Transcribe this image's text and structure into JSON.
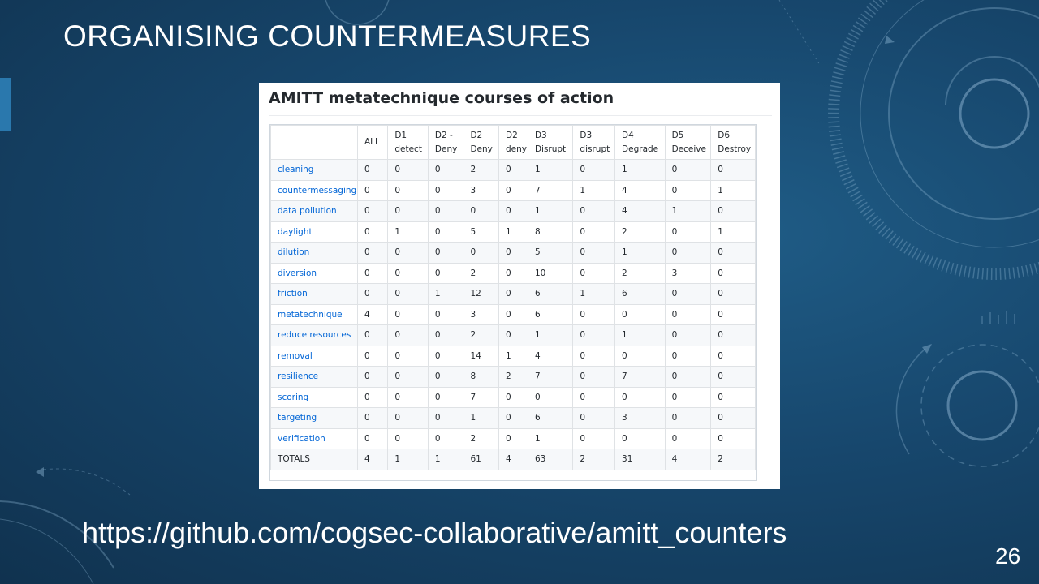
{
  "slide": {
    "title": "ORGANISING COUNTERMEASURES",
    "url": "https://github.com/cogsec-collaborative/amitt_counters",
    "page_number": "26"
  },
  "screenshot": {
    "heading": "AMITT metatechnique courses of action",
    "table": {
      "columns": [
        {
          "line1": "",
          "line2": ""
        },
        {
          "line1": "ALL",
          "line2": ""
        },
        {
          "line1": "D1",
          "line2": "detect"
        },
        {
          "line1": "D2 -",
          "line2": "Deny"
        },
        {
          "line1": "D2",
          "line2": "Deny"
        },
        {
          "line1": "D2",
          "line2": "deny"
        },
        {
          "line1": "D3",
          "line2": "Disrupt"
        },
        {
          "line1": "D3",
          "line2": "disrupt"
        },
        {
          "line1": "D4",
          "line2": "Degrade"
        },
        {
          "line1": "D5",
          "line2": "Deceive"
        },
        {
          "line1": "D6",
          "line2": "Destroy"
        }
      ],
      "rows": [
        {
          "label": "cleaning",
          "values": [
            "0",
            "0",
            "0",
            "2",
            "0",
            "1",
            "0",
            "1",
            "0",
            "0"
          ]
        },
        {
          "label": "countermessaging",
          "values": [
            "0",
            "0",
            "0",
            "3",
            "0",
            "7",
            "1",
            "4",
            "0",
            "1"
          ]
        },
        {
          "label": "data pollution",
          "values": [
            "0",
            "0",
            "0",
            "0",
            "0",
            "1",
            "0",
            "4",
            "1",
            "0"
          ]
        },
        {
          "label": "daylight",
          "values": [
            "0",
            "1",
            "0",
            "5",
            "1",
            "8",
            "0",
            "2",
            "0",
            "1"
          ]
        },
        {
          "label": "dilution",
          "values": [
            "0",
            "0",
            "0",
            "0",
            "0",
            "5",
            "0",
            "1",
            "0",
            "0"
          ]
        },
        {
          "label": "diversion",
          "values": [
            "0",
            "0",
            "0",
            "2",
            "0",
            "10",
            "0",
            "2",
            "3",
            "0"
          ]
        },
        {
          "label": "friction",
          "values": [
            "0",
            "0",
            "1",
            "12",
            "0",
            "6",
            "1",
            "6",
            "0",
            "0"
          ]
        },
        {
          "label": "metatechnique",
          "values": [
            "4",
            "0",
            "0",
            "3",
            "0",
            "6",
            "0",
            "0",
            "0",
            "0"
          ]
        },
        {
          "label": "reduce resources",
          "values": [
            "0",
            "0",
            "0",
            "2",
            "0",
            "1",
            "0",
            "1",
            "0",
            "0"
          ]
        },
        {
          "label": "removal",
          "values": [
            "0",
            "0",
            "0",
            "14",
            "1",
            "4",
            "0",
            "0",
            "0",
            "0"
          ]
        },
        {
          "label": "resilience",
          "values": [
            "0",
            "0",
            "0",
            "8",
            "2",
            "7",
            "0",
            "7",
            "0",
            "0"
          ]
        },
        {
          "label": "scoring",
          "values": [
            "0",
            "0",
            "0",
            "7",
            "0",
            "0",
            "0",
            "0",
            "0",
            "0"
          ]
        },
        {
          "label": "targeting",
          "values": [
            "0",
            "0",
            "0",
            "1",
            "0",
            "6",
            "0",
            "3",
            "0",
            "0"
          ]
        },
        {
          "label": "verification",
          "values": [
            "0",
            "0",
            "0",
            "2",
            "0",
            "1",
            "0",
            "0",
            "0",
            "0"
          ]
        }
      ],
      "totals": {
        "label": "TOTALS",
        "values": [
          "4",
          "1",
          "1",
          "61",
          "4",
          "63",
          "2",
          "31",
          "4",
          "2"
        ]
      }
    }
  }
}
